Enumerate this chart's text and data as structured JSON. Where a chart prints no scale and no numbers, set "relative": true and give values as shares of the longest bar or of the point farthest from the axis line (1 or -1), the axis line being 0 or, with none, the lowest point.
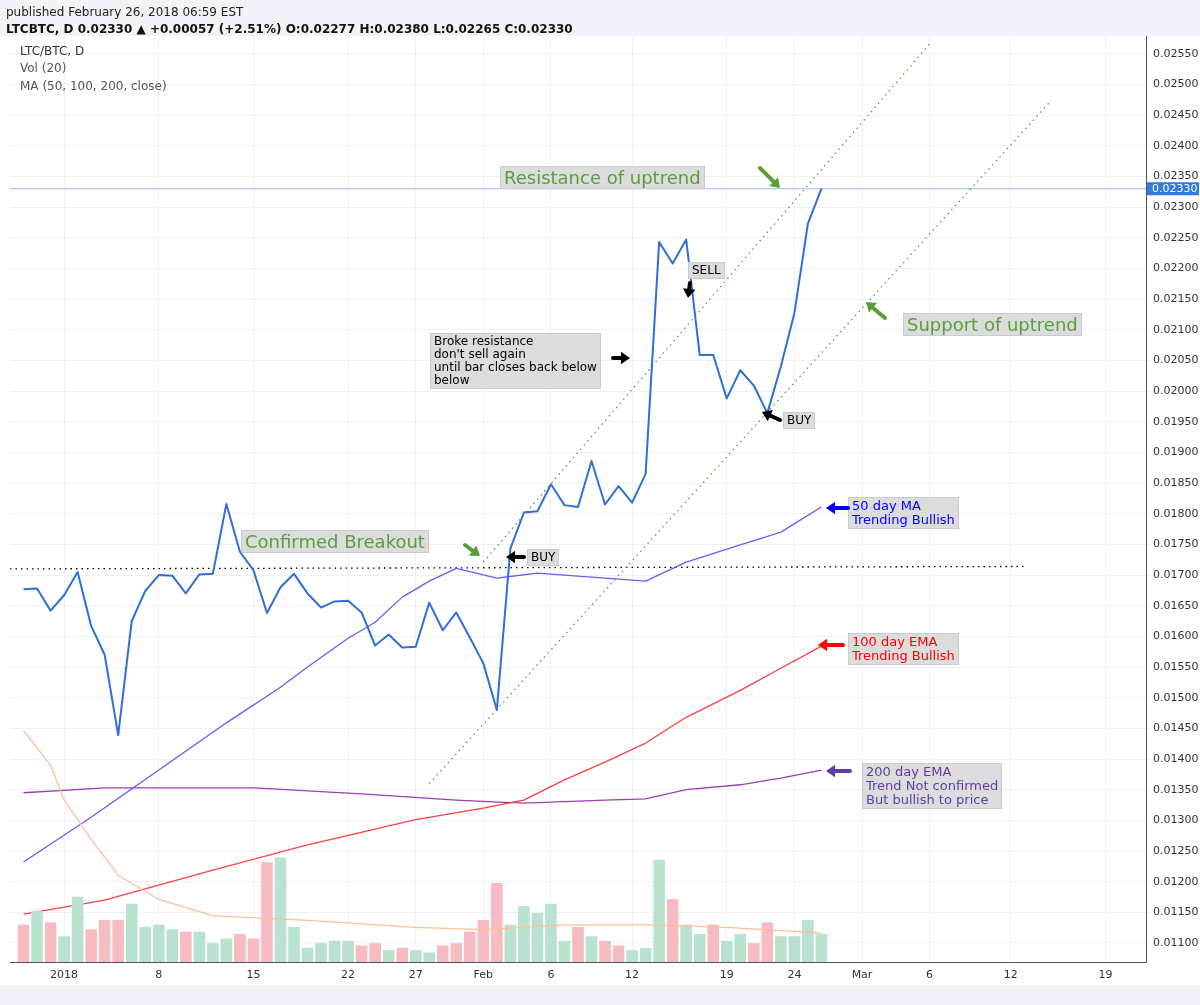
{
  "chart_data": [
    {
      "type": "line",
      "title": "LTC/BTC, D",
      "subtitle": "LTCBTC, D 0.02330 ▲ +0.00057 (+2.51%) O:0.02277 H:0.02380 L:0.02265 C:0.02330",
      "annotations": [
        "published February 26, 2018 06:59 EST",
        "Vol (20)",
        "MA (50, 100, 200, close)",
        "Resistance of uptrend",
        "Support of uptrend",
        "Broke resistance\ndon't sell again\nuntil bar closes back below\nbelow",
        "SELL",
        "BUY",
        "BUY",
        "Confirmed Breakout",
        "50 day MA\nTrending Bullish",
        "100 day EMA\nTrending Bullish",
        "200 day EMA\nTrend Not confirmed\nBut bullish to price"
      ],
      "x": [
        "2017-12-29",
        "2017-12-30",
        "2017-12-31",
        "2018-01-01",
        "2018-01-02",
        "2018-01-03",
        "2018-01-04",
        "2018-01-05",
        "2018-01-06",
        "2018-01-07",
        "2018-01-08",
        "2018-01-09",
        "2018-01-10",
        "2018-01-11",
        "2018-01-12",
        "2018-01-13",
        "2018-01-14",
        "2018-01-15",
        "2018-01-16",
        "2018-01-17",
        "2018-01-18",
        "2018-01-19",
        "2018-01-20",
        "2018-01-21",
        "2018-01-22",
        "2018-01-23",
        "2018-01-24",
        "2018-01-25",
        "2018-01-26",
        "2018-01-27",
        "2018-01-28",
        "2018-01-29",
        "2018-01-30",
        "2018-01-31",
        "2018-02-01",
        "2018-02-02",
        "2018-02-03",
        "2018-02-04",
        "2018-02-05",
        "2018-02-06",
        "2018-02-07",
        "2018-02-08",
        "2018-02-09",
        "2018-02-10",
        "2018-02-11",
        "2018-02-12",
        "2018-02-13",
        "2018-02-14",
        "2018-02-15",
        "2018-02-16",
        "2018-02-17",
        "2018-02-18",
        "2018-02-19",
        "2018-02-20",
        "2018-02-21",
        "2018-02-22",
        "2018-02-23",
        "2018-02-24",
        "2018-02-25",
        "2018-02-26"
      ],
      "xlim": [
        "2017-12-28",
        "2018-03-22"
      ],
      "xticks": [
        {
          "value": "2018-01-01",
          "label": "2018"
        },
        {
          "value": "2018-01-08",
          "label": "8"
        },
        {
          "value": "2018-01-15",
          "label": "15"
        },
        {
          "value": "2018-01-22",
          "label": "22"
        },
        {
          "value": "2018-01-27",
          "label": "27"
        },
        {
          "value": "2018-02-01",
          "label": "Feb"
        },
        {
          "value": "2018-02-06",
          "label": "6"
        },
        {
          "value": "2018-02-12",
          "label": "12"
        },
        {
          "value": "2018-02-19",
          "label": "19"
        },
        {
          "value": "2018-02-24",
          "label": "24"
        },
        {
          "value": "2018-03-01",
          "label": "Mar"
        },
        {
          "value": "2018-03-06",
          "label": "6"
        },
        {
          "value": "2018-03-12",
          "label": "12"
        },
        {
          "value": "2018-03-19",
          "label": "19"
        }
      ],
      "ylim": [
        0.01069,
        0.02579
      ],
      "yticks": [
        {
          "value": 0.011,
          "label": "0.01100"
        },
        {
          "value": 0.0115,
          "label": "0.01150"
        },
        {
          "value": 0.012,
          "label": "0.01200"
        },
        {
          "value": 0.0125,
          "label": "0.01250"
        },
        {
          "value": 0.013,
          "label": "0.01300"
        },
        {
          "value": 0.0135,
          "label": "0.01350"
        },
        {
          "value": 0.014,
          "label": "0.01400"
        },
        {
          "value": 0.0145,
          "label": "0.01450"
        },
        {
          "value": 0.015,
          "label": "0.01500"
        },
        {
          "value": 0.0155,
          "label": "0.01550"
        },
        {
          "value": 0.016,
          "label": "0.01600"
        },
        {
          "value": 0.0165,
          "label": "0.01650"
        },
        {
          "value": 0.017,
          "label": "0.01700"
        },
        {
          "value": 0.0175,
          "label": "0.01750"
        },
        {
          "value": 0.018,
          "label": "0.01800"
        },
        {
          "value": 0.0185,
          "label": "0.01850"
        },
        {
          "value": 0.019,
          "label": "0.01900"
        },
        {
          "value": 0.0195,
          "label": "0.01950"
        },
        {
          "value": 0.02,
          "label": "0.02000"
        },
        {
          "value": 0.0205,
          "label": "0.02050"
        },
        {
          "value": 0.021,
          "label": "0.02100"
        },
        {
          "value": 0.0215,
          "label": "0.02150"
        },
        {
          "value": 0.022,
          "label": "0.02200"
        },
        {
          "value": 0.0225,
          "label": "0.02250"
        },
        {
          "value": 0.023,
          "label": "0.02300"
        },
        {
          "value": 0.0235,
          "label": "0.02350"
        },
        {
          "value": 0.024,
          "label": "0.02400"
        },
        {
          "value": 0.0245,
          "label": "0.02450"
        },
        {
          "value": 0.025,
          "label": "0.02500"
        },
        {
          "value": 0.0255,
          "label": "0.02550"
        }
      ],
      "grid": true,
      "marker": "none",
      "ref_lines": [
        {
          "axis": "y",
          "value": 0.0233,
          "label": "0.02330",
          "color": "#9dbde6"
        }
      ],
      "series": [
        {
          "color": "#2f6fd6",
          "values": [
            0.01677,
            0.01678,
            0.01642,
            0.01667,
            0.01705,
            0.01617,
            0.0157,
            0.01439,
            0.01625,
            0.01674,
            0.017,
            0.01699,
            0.0167,
            0.01701,
            0.01702,
            0.01816,
            0.01738,
            0.01708,
            0.01638,
            0.0168,
            0.01702,
            0.0167,
            0.01647,
            0.01657,
            0.01658,
            0.01639,
            0.01585,
            0.01603,
            0.01582,
            0.01583,
            0.01655,
            0.0161,
            0.01639,
            0.01598,
            0.01556,
            0.0148,
            0.01743,
            0.01802,
            0.01804,
            0.01848,
            0.01814,
            0.01811,
            0.01886,
            0.01815,
            0.01845,
            0.01818,
            0.01865,
            0.02243,
            0.02208,
            0.02247,
            0.02059,
            0.02059,
            0.01988,
            0.02034,
            0.02009,
            0.01964,
            0.0204,
            0.02127,
            0.02273,
            0.0233
          ]
        },
        {
          "color": "#6a5cf5",
          "x": [
            "2017-12-29",
            "2018-01-03",
            "2018-01-08",
            "2018-01-13",
            "2018-01-17",
            "2018-01-19",
            "2018-01-22",
            "2018-01-24",
            "2018-01-26",
            "2018-01-28",
            "2018-01-30",
            "2018-02-02",
            "2018-02-05",
            "2018-02-10",
            "2018-02-13",
            "2018-02-16",
            "2018-02-20",
            "2018-02-23",
            "2018-02-26"
          ],
          "values": [
            0.01232,
            0.01305,
            0.01382,
            0.01459,
            0.01517,
            0.0155,
            0.01597,
            0.01623,
            0.01664,
            0.0169,
            0.01711,
            0.01695,
            0.01703,
            0.01695,
            0.0169,
            0.01721,
            0.01749,
            0.0177,
            0.01811
          ]
        },
        {
          "color": "#ff4040",
          "x": [
            "2017-12-29",
            "2018-01-04",
            "2018-01-12",
            "2018-01-19",
            "2018-01-27",
            "2018-02-01",
            "2018-02-04",
            "2018-02-07",
            "2018-02-10",
            "2018-02-13",
            "2018-02-16",
            "2018-02-20",
            "2018-02-23",
            "2018-02-26"
          ],
          "values": [
            0.01147,
            0.0117,
            0.01219,
            0.0126,
            0.01301,
            0.0132,
            0.01333,
            0.01366,
            0.01395,
            0.01426,
            0.01468,
            0.01512,
            0.01548,
            0.01584
          ]
        },
        {
          "color": "#9b3fb0",
          "x": [
            "2017-12-29",
            "2018-01-04",
            "2018-01-15",
            "2018-01-23",
            "2018-01-30",
            "2018-02-04",
            "2018-02-10",
            "2018-02-13",
            "2018-02-16",
            "2018-02-20",
            "2018-02-23",
            "2018-02-26"
          ],
          "values": [
            0.01345,
            0.01353,
            0.01353,
            0.01343,
            0.01333,
            0.01328,
            0.01333,
            0.01335,
            0.0135,
            0.01358,
            0.01369,
            0.01382
          ]
        },
        {
          "color": "#5aa03c",
          "line_style": "dotted",
          "x": [
            "2018-02-01",
            "2018-03-06"
          ],
          "values": [
            0.01721,
            0.02566
          ]
        },
        {
          "color": "#5aa03c",
          "line_style": "dotted",
          "x": [
            "2018-01-28",
            "2018-03-15"
          ],
          "values": [
            0.0136,
            0.02474
          ]
        },
        {
          "color": "#000000",
          "line_style": "dotted",
          "x": [
            "2017-12-28",
            "2018-03-13"
          ],
          "values": [
            0.0171,
            0.01714
          ]
        }
      ]
    },
    {
      "type": "bar",
      "relative": true,
      "marker": "none",
      "x": [
        "2017-12-29",
        "2017-12-30",
        "2017-12-31",
        "2018-01-01",
        "2018-01-02",
        "2018-01-03",
        "2018-01-04",
        "2018-01-05",
        "2018-01-06",
        "2018-01-07",
        "2018-01-08",
        "2018-01-09",
        "2018-01-10",
        "2018-01-11",
        "2018-01-12",
        "2018-01-13",
        "2018-01-14",
        "2018-01-15",
        "2018-01-16",
        "2018-01-17",
        "2018-01-18",
        "2018-01-19",
        "2018-01-20",
        "2018-01-21",
        "2018-01-22",
        "2018-01-23",
        "2018-01-24",
        "2018-01-25",
        "2018-01-26",
        "2018-01-27",
        "2018-01-28",
        "2018-01-29",
        "2018-01-30",
        "2018-01-31",
        "2018-02-01",
        "2018-02-02",
        "2018-02-03",
        "2018-02-04",
        "2018-02-05",
        "2018-02-06",
        "2018-02-07",
        "2018-02-08",
        "2018-02-09",
        "2018-02-10",
        "2018-02-11",
        "2018-02-12",
        "2018-02-13",
        "2018-02-14",
        "2018-02-15",
        "2018-02-16",
        "2018-02-17",
        "2018-02-18",
        "2018-02-19",
        "2018-02-20",
        "2018-02-21",
        "2018-02-22",
        "2018-02-23",
        "2018-02-24",
        "2018-02-25",
        "2018-02-26"
      ],
      "xlim": [
        "2017-12-28",
        "2018-03-22"
      ],
      "series": [
        {
          "colors": [
            "#f7bcc3",
            "#b9e3cf",
            "#f7bcc3",
            "#b9e3cf",
            "#b9e3cf",
            "#f7bcc3",
            "#f7bcc3",
            "#f7bcc3",
            "#b9e3cf",
            "#b9e3cf",
            "#b9e3cf",
            "#b9e3cf",
            "#f7bcc3",
            "#b9e3cf",
            "#b9e3cf",
            "#b9e3cf",
            "#f7bcc3",
            "#f7bcc3",
            "#f7bcc3",
            "#b9e3cf",
            "#b9e3cf",
            "#b9e3cf",
            "#b9e3cf",
            "#b9e3cf",
            "#b9e3cf",
            "#f7bcc3",
            "#f7bcc3",
            "#b9e3cf",
            "#f7bcc3",
            "#b9e3cf",
            "#b9e3cf",
            "#f7bcc3",
            "#f7bcc3",
            "#f7bcc3",
            "#f7bcc3",
            "#f7bcc3",
            "#b9e3cf",
            "#b9e3cf",
            "#b9e3cf",
            "#b9e3cf",
            "#b9e3cf",
            "#f7bcc3",
            "#b9e3cf",
            "#f7bcc3",
            "#f7bcc3",
            "#b9e3cf",
            "#b9e3cf",
            "#b9e3cf",
            "#f7bcc3",
            "#b9e3cf",
            "#b9e3cf",
            "#f7bcc3",
            "#b9e3cf",
            "#b9e3cf",
            "#f7bcc3",
            "#f7bcc3",
            "#b9e3cf",
            "#b9e3cf",
            "#b9e3cf",
            "#b9e3cf"
          ],
          "values": [
            0.16,
            0.22,
            0.17,
            0.11,
            0.28,
            0.14,
            0.18,
            0.18,
            0.25,
            0.15,
            0.16,
            0.14,
            0.13,
            0.13,
            0.08,
            0.1,
            0.12,
            0.1,
            0.43,
            0.45,
            0.15,
            0.06,
            0.08,
            0.09,
            0.09,
            0.07,
            0.08,
            0.05,
            0.06,
            0.05,
            0.04,
            0.07,
            0.08,
            0.13,
            0.18,
            0.34,
            0.16,
            0.24,
            0.21,
            0.25,
            0.09,
            0.15,
            0.11,
            0.09,
            0.07,
            0.05,
            0.06,
            0.44,
            0.27,
            0.16,
            0.12,
            0.16,
            0.09,
            0.12,
            0.08,
            0.17,
            0.11,
            0.11,
            0.18,
            0.12
          ]
        },
        {
          "type": "line",
          "color": "#ffbf99",
          "x": [
            "2017-12-29",
            "2017-12-31",
            "2018-01-01",
            "2018-01-03",
            "2018-01-05",
            "2018-01-08",
            "2018-01-12",
            "2018-01-19",
            "2018-01-27",
            "2018-02-01",
            "2018-02-07",
            "2018-02-13",
            "2018-02-19",
            "2018-02-26"
          ],
          "values": [
            1,
            0.85,
            0.7,
            0.53,
            0.375,
            0.27,
            0.2,
            0.18,
            0.15,
            0.14,
            0.16,
            0.16,
            0.15,
            0.125
          ]
        }
      ]
    }
  ]
}
